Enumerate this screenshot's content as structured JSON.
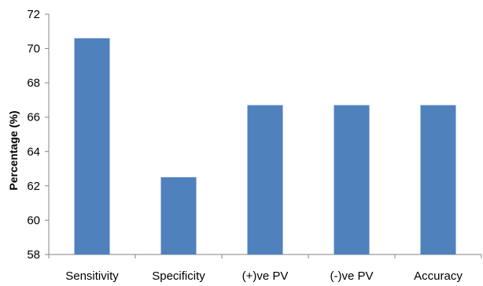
{
  "chart_data": {
    "type": "bar",
    "title": "",
    "xlabel": "",
    "ylabel": "Percentage (%)",
    "categories": [
      "Sensitivity",
      "Specificity",
      "(+)ve PV",
      "(-)ve PV",
      "Accuracy"
    ],
    "values": [
      70.6,
      62.5,
      66.7,
      66.7,
      66.7
    ],
    "ylim": [
      58,
      72
    ],
    "yticks": [
      "58",
      "60",
      "62",
      "64",
      "66",
      "68",
      "70",
      "72"
    ],
    "grid": false,
    "legend": "none",
    "bar_color": "#4f81bd"
  }
}
